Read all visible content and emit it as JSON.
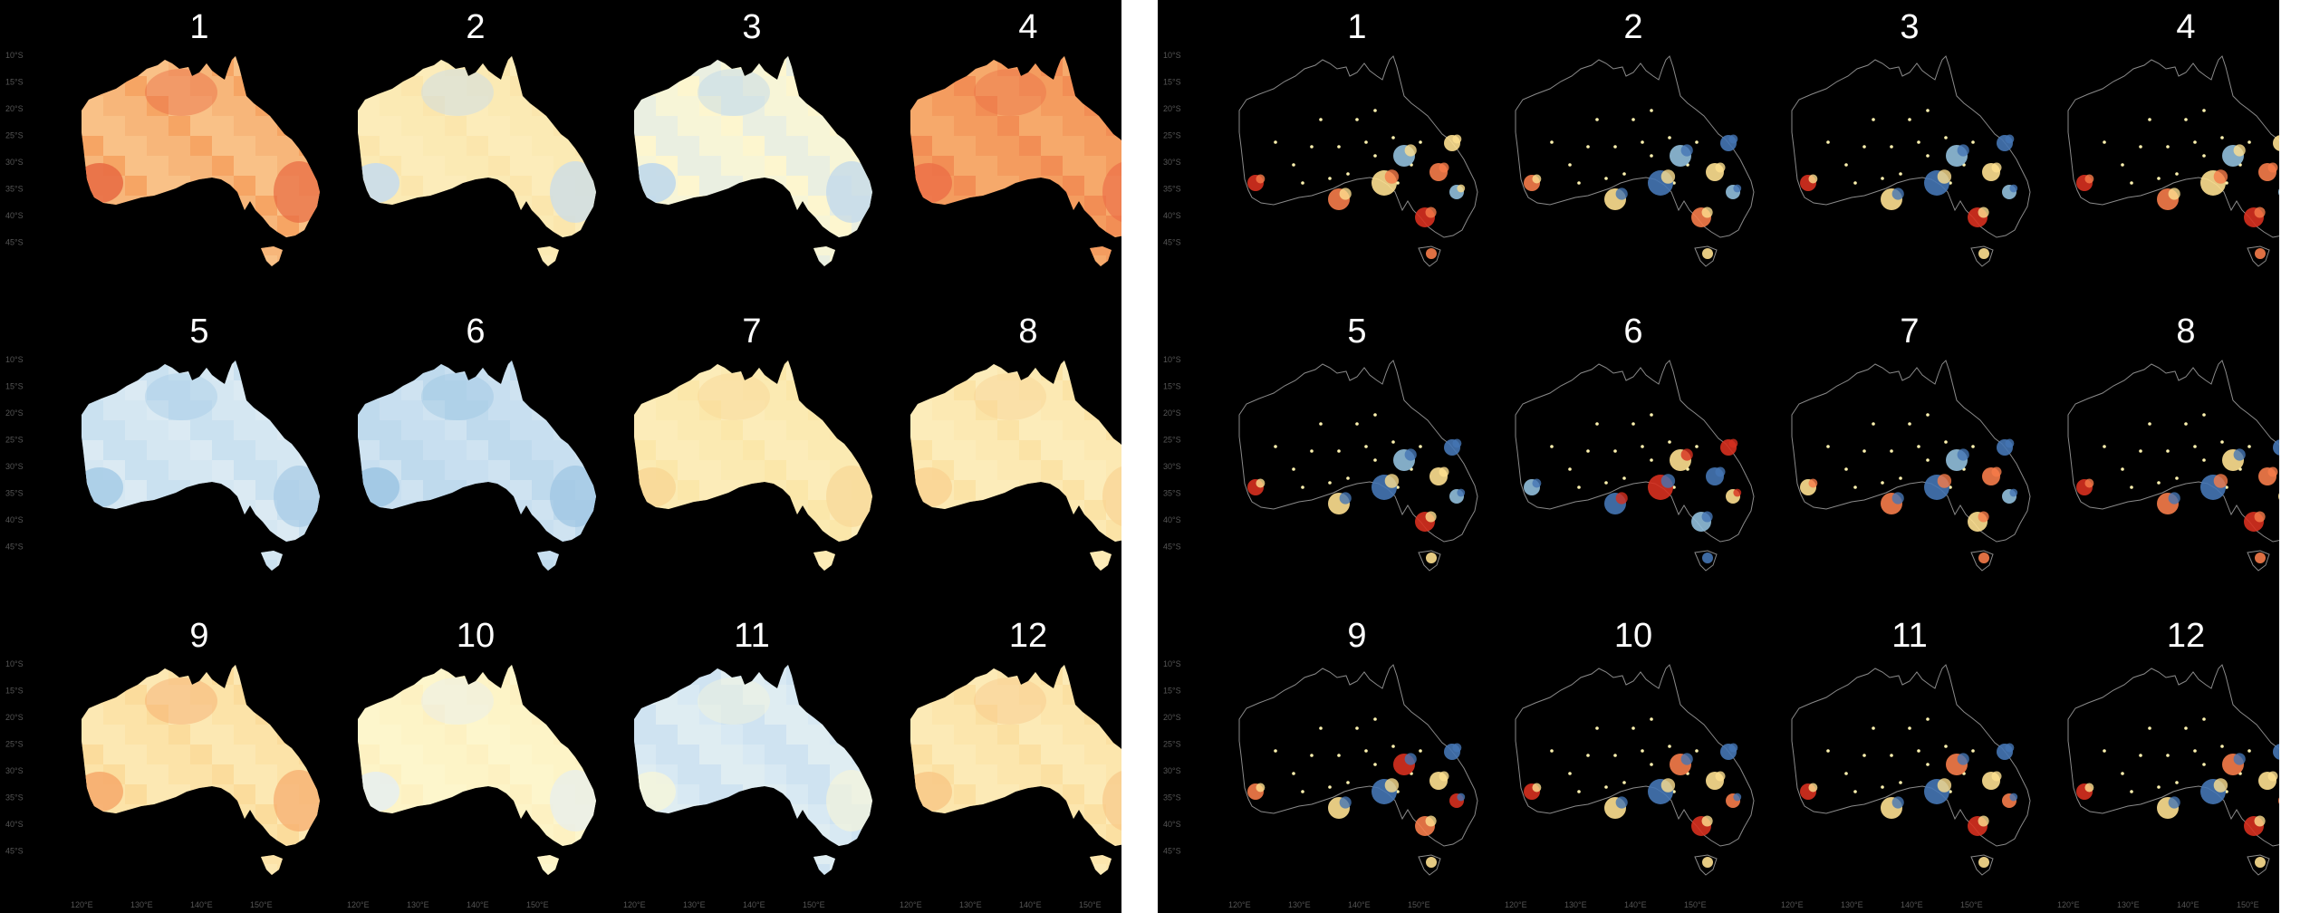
{
  "panels": [
    {
      "id": "gridded",
      "type": "gridded",
      "months": [
        {
          "label": "1",
          "colors": [
            "#f6a565",
            "#f8c48c",
            "#fbd9a4",
            "#e86a42"
          ]
        },
        {
          "label": "2",
          "colors": [
            "#fbe6ad",
            "#fcecb9",
            "#fdf1c4",
            "#c6dcee"
          ]
        },
        {
          "label": "3",
          "colors": [
            "#fdf6cf",
            "#f2f4de",
            "#dbe9f1",
            "#bdd7ec"
          ]
        },
        {
          "label": "4",
          "colors": [
            "#f28e55",
            "#f6a868",
            "#f9c07d",
            "#ec7148"
          ]
        },
        {
          "label": "5",
          "colors": [
            "#dbeaf3",
            "#cfe4f1",
            "#bcd8ec",
            "#a6cbe6"
          ]
        },
        {
          "label": "6",
          "colors": [
            "#cfe3f1",
            "#c3ddef",
            "#b3d3ea",
            "#9cc5e3"
          ]
        },
        {
          "label": "7",
          "colors": [
            "#fbe7aa",
            "#fcecb8",
            "#fdf1c4",
            "#f8d795"
          ]
        },
        {
          "label": "8",
          "colors": [
            "#fbe3a6",
            "#fdefbd",
            "#fdf4cb",
            "#f9d393"
          ]
        },
        {
          "label": "9",
          "colors": [
            "#fbdc9c",
            "#fde9b2",
            "#fef3c6",
            "#f6a96b"
          ]
        },
        {
          "label": "10",
          "colors": [
            "#fdf1c2",
            "#fdf5cc",
            "#fef9d5",
            "#e6eef0"
          ]
        },
        {
          "label": "11",
          "colors": [
            "#d8e9f3",
            "#e6f0f1",
            "#c9dfef",
            "#f4f4dc"
          ]
        },
        {
          "label": "12",
          "colors": [
            "#fbe0a2",
            "#fdebb6",
            "#fdf3c6",
            "#f8c887"
          ]
        }
      ],
      "lat_ticks": [
        "10°S",
        "15°S",
        "20°S",
        "25°S",
        "30°S",
        "35°S",
        "40°S",
        "45°S"
      ],
      "lon_ticks": [
        "120°E",
        "130°E",
        "140°E",
        "150°E"
      ]
    },
    {
      "id": "stations",
      "type": "stations",
      "months": [
        {
          "label": "1",
          "colors": [
            "#d7301f",
            "#f67c4a",
            "#fee090",
            "#91bfdb"
          ]
        },
        {
          "label": "2",
          "colors": [
            "#f67c4a",
            "#fee090",
            "#4575b4",
            "#91bfdb"
          ]
        },
        {
          "label": "3",
          "colors": [
            "#d7301f",
            "#fee090",
            "#4575b4",
            "#91bfdb"
          ]
        },
        {
          "label": "4",
          "colors": [
            "#d7301f",
            "#f67c4a",
            "#fee090",
            "#91bfdb"
          ]
        },
        {
          "label": "5",
          "colors": [
            "#d7301f",
            "#fee090",
            "#4575b4",
            "#91bfdb"
          ]
        },
        {
          "label": "6",
          "colors": [
            "#91bfdb",
            "#4575b4",
            "#d7301f",
            "#fee090"
          ]
        },
        {
          "label": "7",
          "colors": [
            "#fee090",
            "#f67c4a",
            "#4575b4",
            "#91bfdb"
          ]
        },
        {
          "label": "8",
          "colors": [
            "#d7301f",
            "#f67c4a",
            "#4575b4",
            "#fee090"
          ]
        },
        {
          "label": "9",
          "colors": [
            "#f67c4a",
            "#fee090",
            "#4575b4",
            "#d7301f"
          ]
        },
        {
          "label": "10",
          "colors": [
            "#d7301f",
            "#fee090",
            "#4575b4",
            "#f67c4a"
          ]
        },
        {
          "label": "11",
          "colors": [
            "#d7301f",
            "#fee090",
            "#4575b4",
            "#f67c4a"
          ]
        },
        {
          "label": "12",
          "colors": [
            "#d7301f",
            "#fee090",
            "#4575b4",
            "#f67c4a"
          ]
        }
      ],
      "lat_ticks": [
        "10°S",
        "15°S",
        "20°S",
        "25°S",
        "30°S",
        "35°S",
        "40°S",
        "45°S"
      ],
      "lon_ticks": [
        "120°E",
        "130°E",
        "140°E",
        "150°E"
      ]
    }
  ]
}
